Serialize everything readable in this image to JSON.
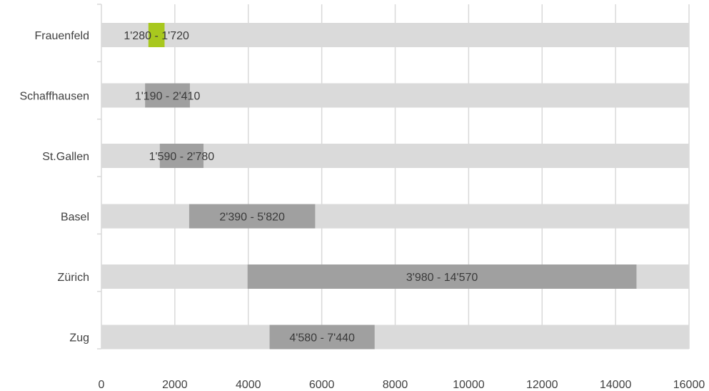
{
  "chart_data": {
    "type": "bar",
    "orientation": "horizontal",
    "subtype": "floating-range",
    "title": "",
    "xlabel": "",
    "ylabel": "",
    "xlim": [
      0,
      16000
    ],
    "x_ticks": [
      0,
      2000,
      4000,
      6000,
      8000,
      10000,
      12000,
      14000,
      16000
    ],
    "x_tick_labels": [
      "0",
      "2000",
      "4000",
      "6000",
      "8000",
      "10000",
      "12000",
      "14000",
      "16000"
    ],
    "grid": "vertical",
    "legend": "none",
    "categories": [
      "Frauenfeld",
      "Schaffhausen",
      "St.Gallen",
      "Basel",
      "Zürich",
      "Zug"
    ],
    "background_max": 16000,
    "ranges": [
      {
        "category": "Frauenfeld",
        "low": 1280,
        "high": 1720,
        "label": "1'280 - 1'720",
        "highlight": true
      },
      {
        "category": "Schaffhausen",
        "low": 1190,
        "high": 2410,
        "label": "1'190 - 2'410",
        "highlight": false
      },
      {
        "category": "St.Gallen",
        "low": 1590,
        "high": 2780,
        "label": "1'590 - 2'780",
        "highlight": false
      },
      {
        "category": "Basel",
        "low": 2390,
        "high": 5820,
        "label": "2'390 - 5'820",
        "highlight": false
      },
      {
        "category": "Zürich",
        "low": 3980,
        "high": 14570,
        "label": "3'980 - 14'570",
        "highlight": false
      },
      {
        "category": "Zug",
        "low": 4580,
        "high": 7440,
        "label": "4'580 - 7'440",
        "highlight": false
      }
    ],
    "colors": {
      "background_bar": "#dadada",
      "range_bar": "#a0a0a0",
      "highlight_bar": "#a8c81e",
      "grid": "#d9d9d9",
      "text": "#404040"
    }
  }
}
